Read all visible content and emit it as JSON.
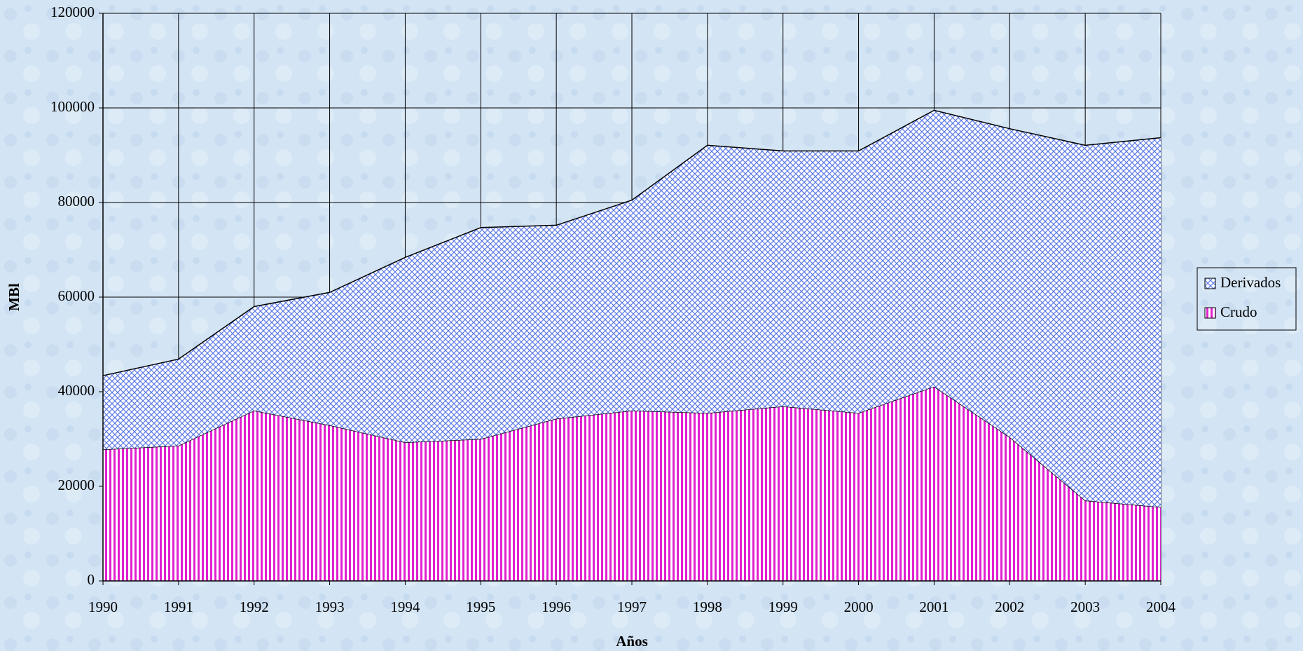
{
  "chart_data": {
    "type": "stacked_area",
    "x_label": "Años",
    "y_label": "MBl",
    "categories": [
      "1990",
      "1991",
      "1992",
      "1993",
      "1994",
      "1995",
      "1996",
      "1997",
      "1998",
      "1999",
      "2000",
      "2001",
      "2002",
      "2003",
      "2004"
    ],
    "series": [
      {
        "name": "Crudo",
        "color": "#e020d0",
        "pattern": "vertical",
        "values": [
          27800,
          28600,
          36000,
          32900,
          29300,
          30000,
          34300,
          36000,
          35500,
          36900,
          35500,
          41100,
          30400,
          17000,
          15600
        ]
      },
      {
        "name": "Derivados",
        "color": "#5a78e6",
        "pattern": "crosshatch",
        "values": [
          15600,
          18300,
          22000,
          28100,
          39100,
          44700,
          40900,
          44500,
          56600,
          54000,
          55400,
          58400,
          65200,
          75100,
          78100
        ]
      }
    ],
    "ylim": [
      0,
      120000
    ],
    "yticks": [
      0,
      20000,
      40000,
      60000,
      80000,
      100000,
      120000
    ],
    "grid": true,
    "legend": "right"
  }
}
